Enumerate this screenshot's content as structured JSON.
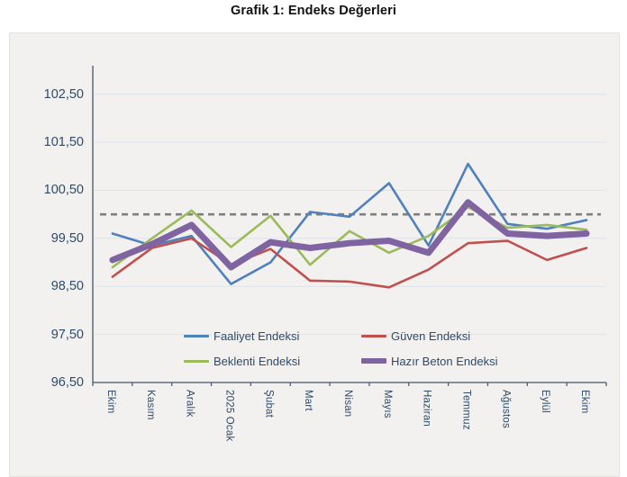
{
  "title": "Grafik 1: Endeks Değerleri",
  "colors": {
    "chart_background": "#f2f1ef",
    "axis_line": "#44546a",
    "gridline": "#dbe2ea",
    "axis_label_text": "#2e4a6b",
    "reference_line": "#7f7f7f",
    "title_text": "#111111"
  },
  "chart_data": {
    "type": "line",
    "title": "Grafik 1: Endeks Değerleri",
    "categories": [
      "Ekim",
      "Kasım",
      "Aralık",
      "2025 Ocak",
      "Şubat",
      "Mart",
      "Nisan",
      "Mayıs",
      "Haziran",
      "Temmuz",
      "Ağustos",
      "Eylül",
      "Ekim"
    ],
    "series": [
      {
        "name": "Faaliyet Endeksi",
        "color": "#4f81bd",
        "thickness": 2.6,
        "values": [
          99.6,
          99.35,
          99.55,
          98.55,
          99.0,
          100.05,
          99.95,
          100.65,
          99.35,
          101.05,
          99.8,
          99.7,
          99.88
        ]
      },
      {
        "name": "Güven Endeksi",
        "color": "#c0504d",
        "thickness": 2.6,
        "values": [
          98.7,
          99.3,
          99.5,
          98.95,
          99.28,
          98.62,
          98.6,
          98.48,
          98.85,
          99.4,
          99.45,
          99.05,
          99.3
        ]
      },
      {
        "name": "Beklenti Endeksi",
        "color": "#9bbb59",
        "thickness": 2.6,
        "values": [
          98.9,
          99.5,
          100.08,
          99.32,
          99.97,
          98.95,
          99.65,
          99.2,
          99.55,
          100.15,
          99.72,
          99.78,
          99.68
        ]
      },
      {
        "name": "Hazır Beton Endeksi",
        "color": "#8064a2",
        "thickness": 7,
        "values": [
          99.05,
          99.38,
          99.78,
          98.9,
          99.42,
          99.3,
          99.4,
          99.45,
          99.2,
          100.25,
          99.6,
          99.55,
          99.6
        ]
      }
    ],
    "reference_line": {
      "value": 100.0,
      "style": "dashed",
      "color": "#7f7f7f"
    },
    "y_axis": {
      "min": 96.5,
      "max": 103.0,
      "tick_step": 1.0,
      "tick_values": [
        96.5,
        97.5,
        98.5,
        99.5,
        100.5,
        101.5,
        102.5
      ],
      "tick_labels": [
        "96,50",
        "97,50",
        "98,50",
        "99,50",
        "100,50",
        "101,50",
        "102,50"
      ]
    },
    "grid": true,
    "legend_position": "inside-bottom",
    "legend_rows": [
      [
        0,
        1
      ],
      [
        2,
        3
      ]
    ]
  }
}
